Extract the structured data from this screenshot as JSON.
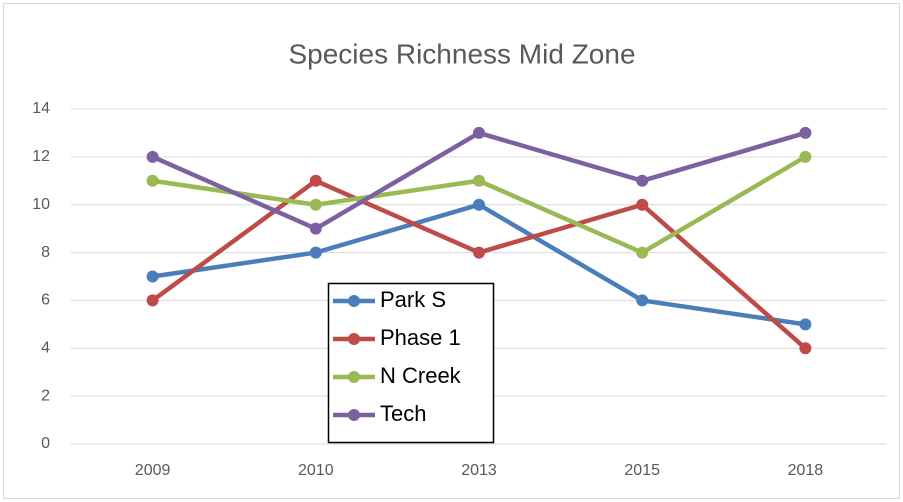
{
  "chart_data": {
    "type": "line",
    "title": "Species Richness Mid Zone",
    "categories": [
      "2009",
      "2010",
      "2013",
      "2015",
      "2018"
    ],
    "series": [
      {
        "name": "Park S",
        "color": "#4a7ebb",
        "values": [
          7,
          8,
          10,
          6,
          5
        ]
      },
      {
        "name": "Phase 1",
        "color": "#be4b48",
        "values": [
          6,
          11,
          8,
          10,
          4
        ]
      },
      {
        "name": "N Creek",
        "color": "#98b954",
        "values": [
          11,
          10,
          11,
          8,
          12
        ]
      },
      {
        "name": "Tech",
        "color": "#7d60a0",
        "values": [
          12,
          9,
          13,
          11,
          13
        ]
      }
    ],
    "ylim": [
      0,
      14
    ],
    "yticks": [
      0,
      2,
      4,
      6,
      8,
      10,
      12,
      14
    ],
    "grid": true,
    "legend": "lower center"
  }
}
